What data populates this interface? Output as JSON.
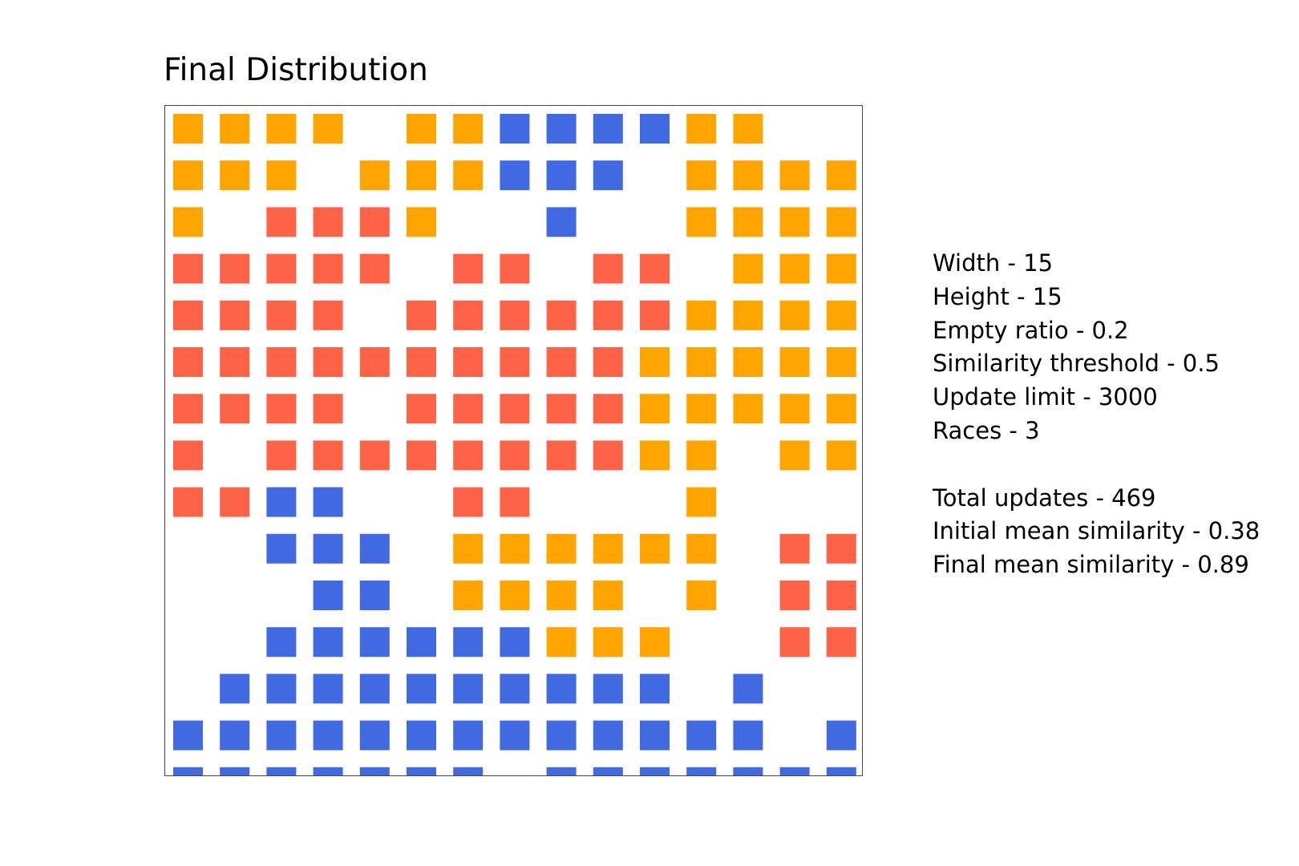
{
  "chart_data": {
    "type": "heatmap",
    "title": "Final Distribution",
    "width": 15,
    "height": 15,
    "legend": "none",
    "grid": false,
    "colors": {
      "0": "#ffffff",
      "1": "#ffa500",
      "2": "#4169e1",
      "3": "#ff6347"
    },
    "cells": [
      [
        1,
        1,
        1,
        1,
        0,
        1,
        1,
        2,
        2,
        2,
        2,
        1,
        1,
        0,
        0
      ],
      [
        1,
        1,
        1,
        0,
        1,
        1,
        1,
        2,
        2,
        2,
        0,
        1,
        1,
        1,
        1
      ],
      [
        1,
        0,
        3,
        3,
        3,
        1,
        0,
        0,
        2,
        0,
        0,
        1,
        1,
        1,
        1
      ],
      [
        3,
        3,
        3,
        3,
        3,
        0,
        3,
        3,
        0,
        3,
        3,
        0,
        1,
        1,
        1
      ],
      [
        3,
        3,
        3,
        3,
        0,
        3,
        3,
        3,
        3,
        3,
        3,
        1,
        1,
        1,
        1
      ],
      [
        3,
        3,
        3,
        3,
        3,
        3,
        3,
        3,
        3,
        3,
        1,
        1,
        1,
        1,
        1
      ],
      [
        3,
        3,
        3,
        3,
        0,
        3,
        3,
        3,
        3,
        3,
        1,
        1,
        1,
        1,
        1
      ],
      [
        3,
        0,
        3,
        3,
        3,
        3,
        3,
        3,
        3,
        3,
        1,
        1,
        0,
        1,
        1
      ],
      [
        3,
        3,
        2,
        2,
        0,
        0,
        3,
        3,
        0,
        0,
        0,
        1,
        0,
        0,
        0
      ],
      [
        0,
        0,
        2,
        2,
        2,
        0,
        1,
        1,
        1,
        1,
        1,
        1,
        0,
        3,
        3
      ],
      [
        0,
        0,
        0,
        2,
        2,
        0,
        1,
        1,
        1,
        1,
        0,
        1,
        0,
        3,
        3
      ],
      [
        0,
        0,
        2,
        2,
        2,
        2,
        2,
        2,
        1,
        1,
        1,
        0,
        0,
        3,
        3
      ],
      [
        0,
        2,
        2,
        2,
        2,
        2,
        2,
        2,
        2,
        2,
        2,
        0,
        2,
        0,
        0
      ],
      [
        2,
        2,
        2,
        2,
        2,
        2,
        2,
        2,
        2,
        2,
        2,
        2,
        2,
        0,
        2
      ],
      [
        2,
        2,
        2,
        2,
        2,
        2,
        2,
        0,
        2,
        2,
        2,
        2,
        2,
        2,
        2
      ]
    ]
  },
  "params": {
    "width": "Width - 15",
    "height": "Height - 15",
    "empty_ratio": "Empty ratio - 0.2",
    "similarity_threshold": "Similarity threshold - 0.5",
    "update_limit": "Update limit - 3000",
    "races": "Races - 3",
    "total_updates": "Total updates - 469",
    "initial_mean_similarity": "Initial mean similarity - 0.38",
    "final_mean_similarity": "Final mean similarity - 0.89"
  }
}
